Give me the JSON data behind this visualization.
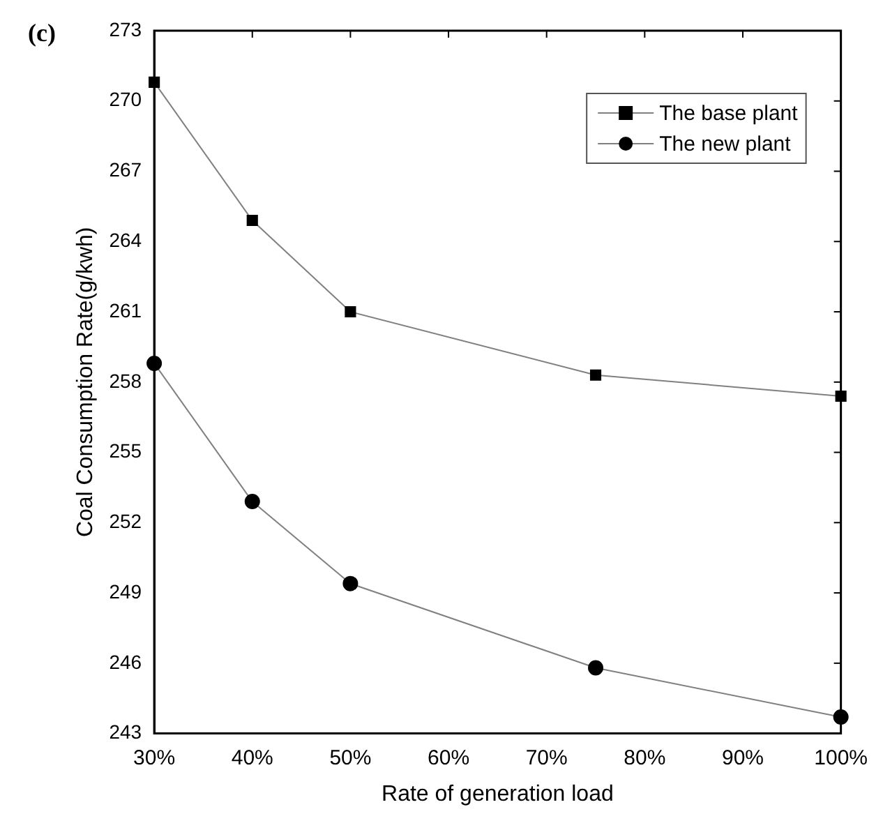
{
  "chart_data": {
    "type": "line",
    "xlabel": "Rate of generation load",
    "ylabel": "Coal Consumption Rate(g/kwh)",
    "annotations": [
      "(c)"
    ],
    "x": [
      30,
      40,
      50,
      75,
      100
    ],
    "series": [
      {
        "name": "The base plant",
        "color": "#000000",
        "marker": "square",
        "values": [
          270.8,
          264.9,
          261.0,
          258.3,
          257.4
        ]
      },
      {
        "name": "The new plant",
        "color": "#000000",
        "marker": "circle",
        "values": [
          258.8,
          252.9,
          249.4,
          245.8,
          243.7
        ]
      }
    ],
    "xlim": [
      30,
      100
    ],
    "xticks": [
      {
        "value": 30,
        "label": "30%"
      },
      {
        "value": 40,
        "label": "40%"
      },
      {
        "value": 50,
        "label": "50%"
      },
      {
        "value": 60,
        "label": "60%"
      },
      {
        "value": 70,
        "label": "70%"
      },
      {
        "value": 80,
        "label": "80%"
      },
      {
        "value": 90,
        "label": "90%"
      },
      {
        "value": 100,
        "label": "100%"
      }
    ],
    "ylim": [
      243,
      273
    ],
    "yticks": [
      243,
      246,
      249,
      252,
      255,
      258,
      261,
      264,
      267,
      270,
      273
    ],
    "grid": false,
    "legend": "top right",
    "line_style": "solid"
  }
}
